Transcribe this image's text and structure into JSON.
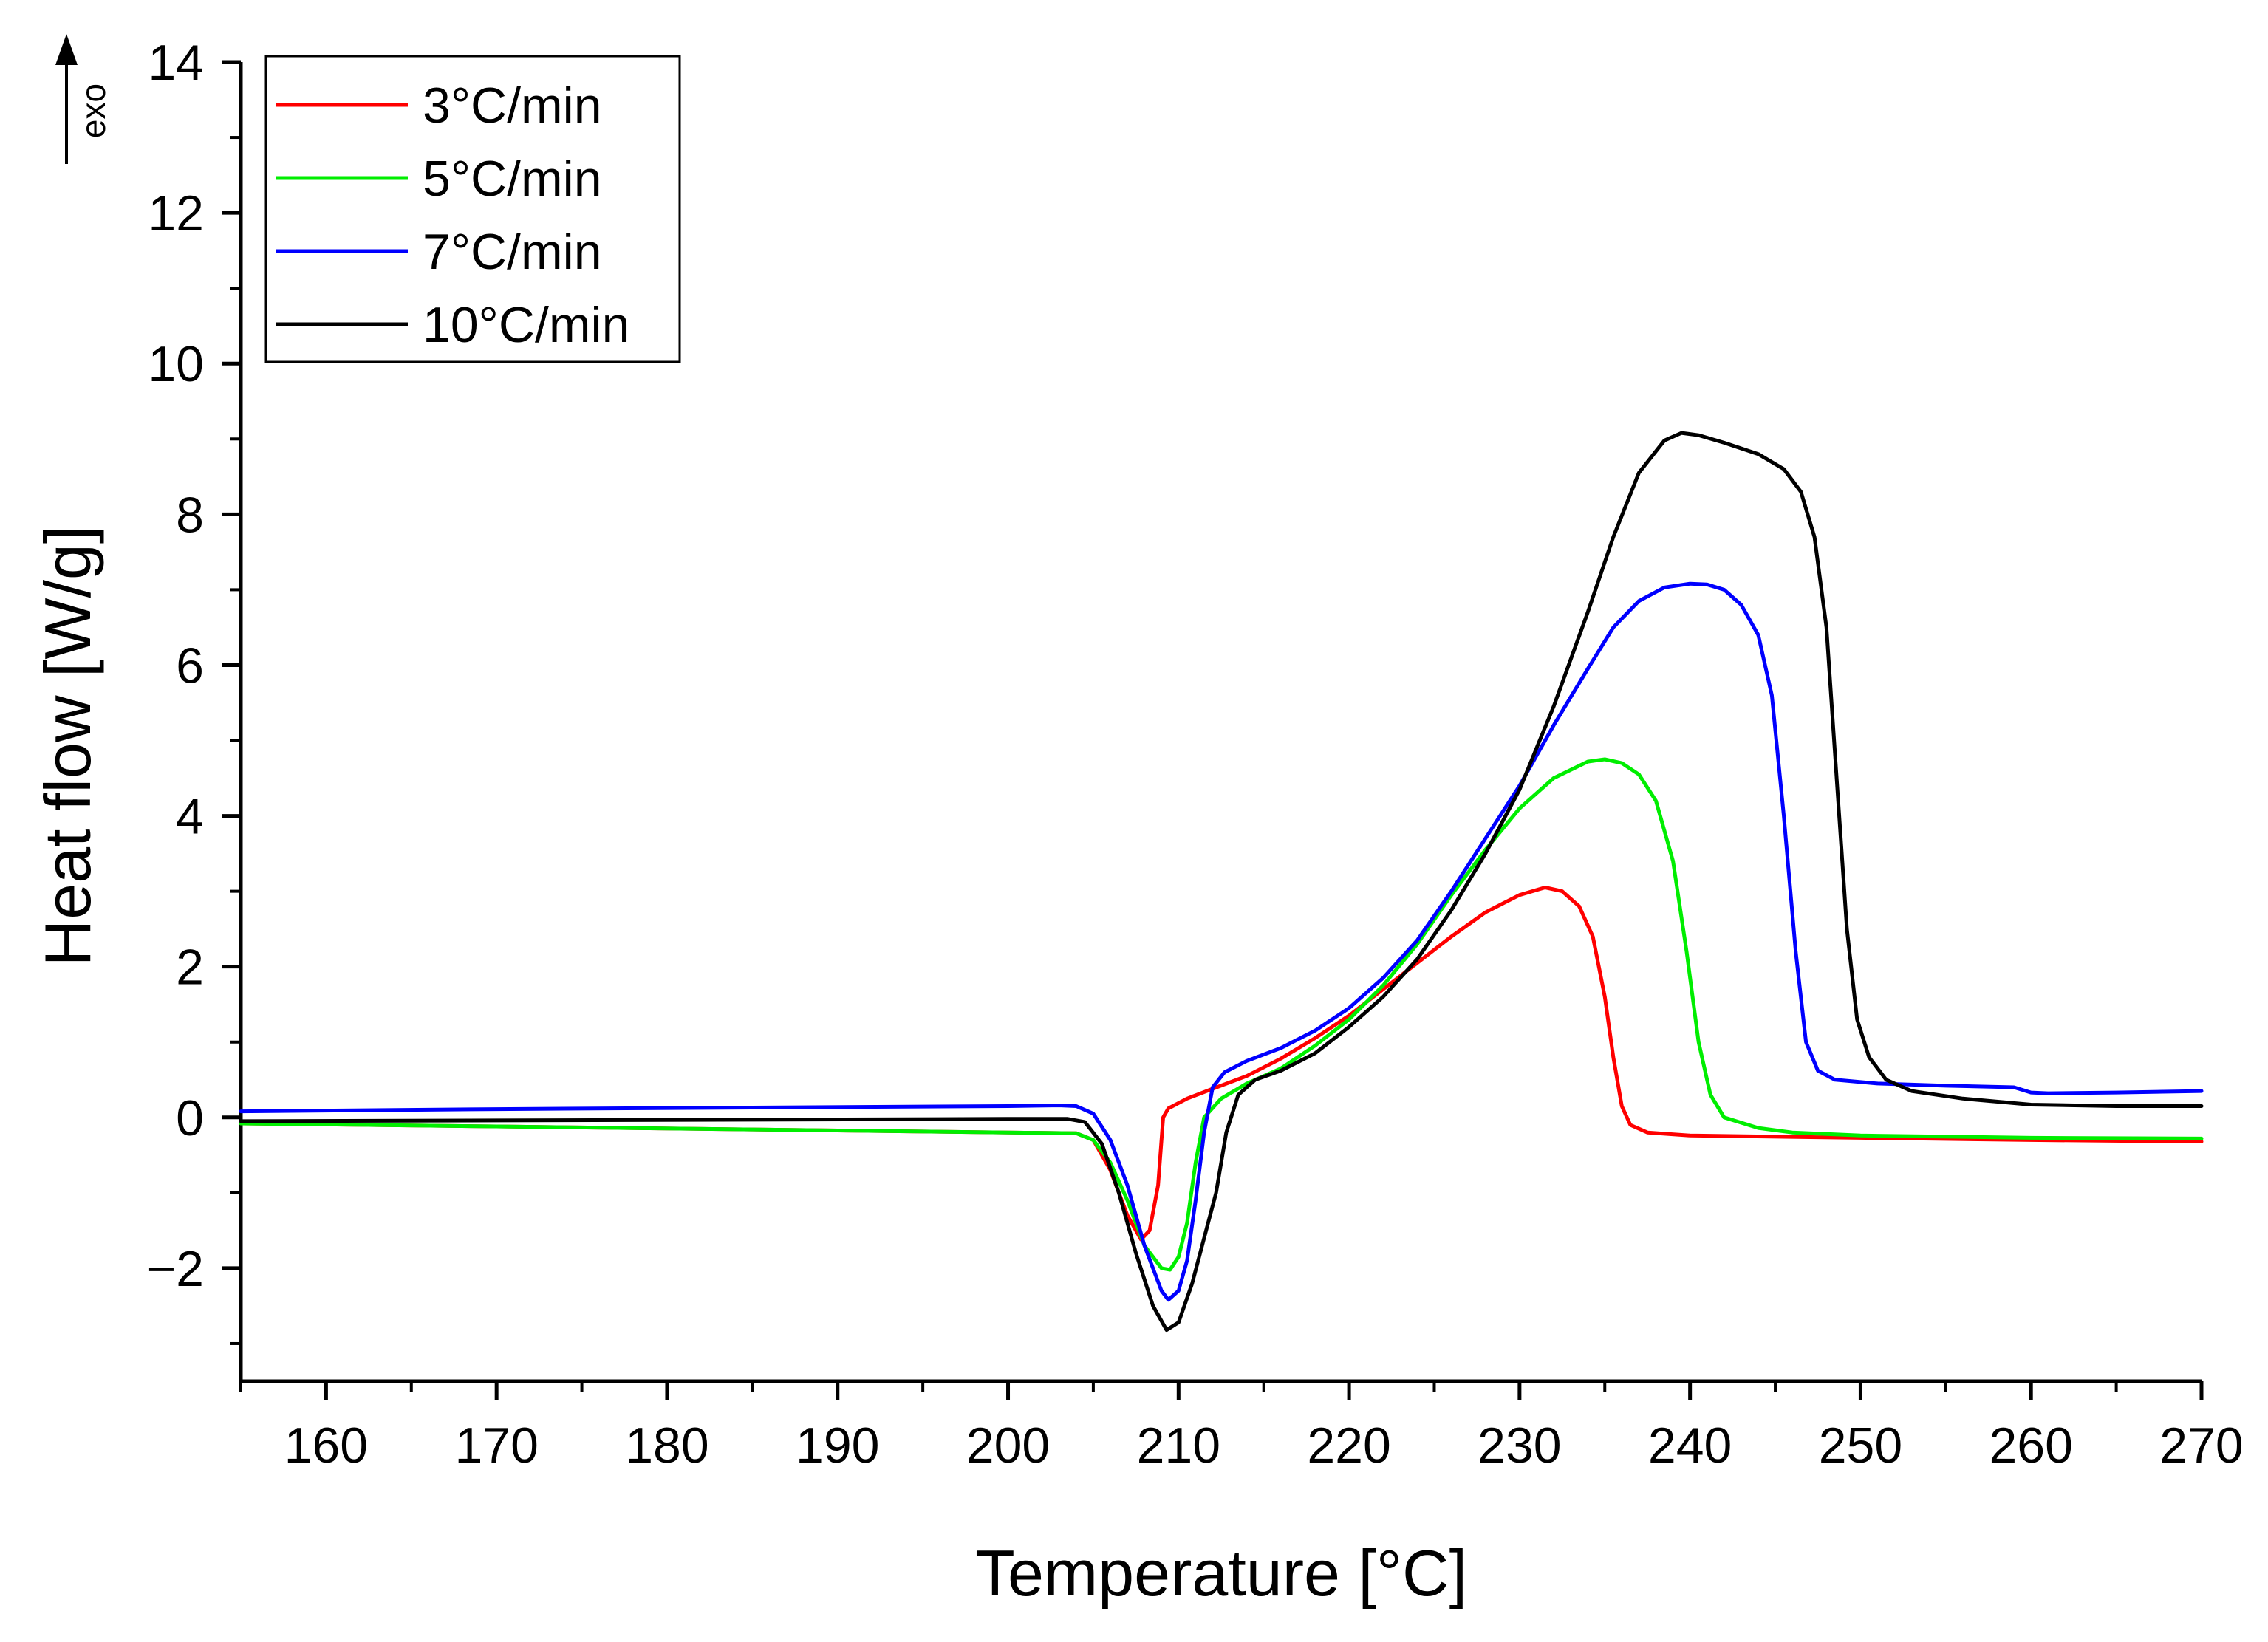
{
  "chart_data": {
    "type": "line",
    "title": "",
    "xlabel": "Temperature [°C]",
    "ylabel": "Heat flow [W/g]",
    "exo_label": "exo",
    "xlim": [
      155,
      270
    ],
    "ylim": [
      -3.5,
      14
    ],
    "xticks": [
      160,
      170,
      180,
      190,
      200,
      210,
      220,
      230,
      240,
      250,
      260,
      270
    ],
    "xtick_labels": [
      "160",
      "170",
      "180",
      "190",
      "200",
      "210",
      "220",
      "230",
      "240",
      "250",
      "260",
      "270"
    ],
    "yticks": [
      -2,
      0,
      2,
      4,
      6,
      8,
      10,
      12,
      14
    ],
    "ytick_labels": [
      "−2",
      "0",
      "2",
      "4",
      "6",
      "8",
      "10",
      "12",
      "14"
    ],
    "legend_position": "top-left",
    "grid": false,
    "series": [
      {
        "name": "3°C/min",
        "color": "#ff0000",
        "points": [
          [
            155,
            -0.08
          ],
          [
            170,
            -0.12
          ],
          [
            185,
            -0.16
          ],
          [
            200,
            -0.2
          ],
          [
            204,
            -0.21
          ],
          [
            205,
            -0.3
          ],
          [
            206,
            -0.7
          ],
          [
            207,
            -1.3
          ],
          [
            207.8,
            -1.62
          ],
          [
            208.3,
            -1.5
          ],
          [
            208.8,
            -0.9
          ],
          [
            209.1,
            0.0
          ],
          [
            209.4,
            0.12
          ],
          [
            210.5,
            0.25
          ],
          [
            212,
            0.38
          ],
          [
            214,
            0.55
          ],
          [
            216,
            0.78
          ],
          [
            218,
            1.05
          ],
          [
            220,
            1.35
          ],
          [
            222,
            1.7
          ],
          [
            224,
            2.05
          ],
          [
            226,
            2.4
          ],
          [
            228,
            2.72
          ],
          [
            230,
            2.95
          ],
          [
            231.5,
            3.05
          ],
          [
            232.5,
            3.0
          ],
          [
            233.5,
            2.8
          ],
          [
            234.3,
            2.4
          ],
          [
            235,
            1.6
          ],
          [
            235.5,
            0.8
          ],
          [
            236,
            0.15
          ],
          [
            236.5,
            -0.1
          ],
          [
            237.5,
            -0.2
          ],
          [
            240,
            -0.24
          ],
          [
            250,
            -0.27
          ],
          [
            260,
            -0.3
          ],
          [
            270,
            -0.32
          ]
        ]
      },
      {
        "name": "5°C/min",
        "color": "#00ee00",
        "points": [
          [
            155,
            -0.08
          ],
          [
            170,
            -0.12
          ],
          [
            185,
            -0.16
          ],
          [
            200,
            -0.2
          ],
          [
            204,
            -0.21
          ],
          [
            205,
            -0.3
          ],
          [
            206,
            -0.6
          ],
          [
            207,
            -1.1
          ],
          [
            208,
            -1.7
          ],
          [
            209,
            -2.0
          ],
          [
            209.5,
            -2.02
          ],
          [
            210,
            -1.85
          ],
          [
            210.5,
            -1.4
          ],
          [
            211,
            -0.6
          ],
          [
            211.5,
            0.0
          ],
          [
            212.5,
            0.25
          ],
          [
            214,
            0.45
          ],
          [
            216,
            0.65
          ],
          [
            218,
            0.95
          ],
          [
            220,
            1.3
          ],
          [
            222,
            1.75
          ],
          [
            224,
            2.3
          ],
          [
            226,
            2.95
          ],
          [
            228,
            3.55
          ],
          [
            230,
            4.1
          ],
          [
            232,
            4.5
          ],
          [
            234,
            4.72
          ],
          [
            235,
            4.75
          ],
          [
            236,
            4.7
          ],
          [
            237,
            4.55
          ],
          [
            238,
            4.2
          ],
          [
            239,
            3.4
          ],
          [
            239.8,
            2.2
          ],
          [
            240.5,
            1.0
          ],
          [
            241.2,
            0.3
          ],
          [
            242,
            0.0
          ],
          [
            244,
            -0.14
          ],
          [
            246,
            -0.2
          ],
          [
            250,
            -0.24
          ],
          [
            260,
            -0.27
          ],
          [
            270,
            -0.28
          ]
        ]
      },
      {
        "name": "7°C/min",
        "color": "#0000ff",
        "points": [
          [
            155,
            0.08
          ],
          [
            170,
            0.11
          ],
          [
            185,
            0.13
          ],
          [
            200,
            0.15
          ],
          [
            203,
            0.16
          ],
          [
            204,
            0.15
          ],
          [
            205,
            0.05
          ],
          [
            206,
            -0.3
          ],
          [
            207,
            -0.9
          ],
          [
            208,
            -1.7
          ],
          [
            209,
            -2.3
          ],
          [
            209.4,
            -2.42
          ],
          [
            210,
            -2.3
          ],
          [
            210.5,
            -1.9
          ],
          [
            211,
            -1.1
          ],
          [
            211.5,
            -0.2
          ],
          [
            212,
            0.4
          ],
          [
            212.7,
            0.6
          ],
          [
            214,
            0.75
          ],
          [
            216,
            0.92
          ],
          [
            218,
            1.15
          ],
          [
            220,
            1.45
          ],
          [
            222,
            1.85
          ],
          [
            224,
            2.35
          ],
          [
            226,
            3.0
          ],
          [
            228,
            3.7
          ],
          [
            230,
            4.4
          ],
          [
            232,
            5.2
          ],
          [
            234,
            5.95
          ],
          [
            235.5,
            6.5
          ],
          [
            237,
            6.85
          ],
          [
            238.5,
            7.03
          ],
          [
            240,
            7.08
          ],
          [
            241,
            7.07
          ],
          [
            242,
            7.0
          ],
          [
            243,
            6.8
          ],
          [
            244,
            6.4
          ],
          [
            244.8,
            5.6
          ],
          [
            245.5,
            4.0
          ],
          [
            246.2,
            2.2
          ],
          [
            246.8,
            1.0
          ],
          [
            247.5,
            0.62
          ],
          [
            248.5,
            0.5
          ],
          [
            251,
            0.45
          ],
          [
            255,
            0.42
          ],
          [
            259,
            0.4
          ],
          [
            260,
            0.33
          ],
          [
            261,
            0.32
          ],
          [
            265,
            0.33
          ],
          [
            270,
            0.35
          ]
        ]
      },
      {
        "name": "10°C/min",
        "color": "#000000",
        "points": [
          [
            155,
            -0.05
          ],
          [
            170,
            -0.04
          ],
          [
            185,
            -0.03
          ],
          [
            200,
            -0.02
          ],
          [
            203.5,
            -0.02
          ],
          [
            204.5,
            -0.06
          ],
          [
            205.5,
            -0.35
          ],
          [
            206.5,
            -1.0
          ],
          [
            207.5,
            -1.8
          ],
          [
            208.5,
            -2.5
          ],
          [
            209.3,
            -2.82
          ],
          [
            210,
            -2.72
          ],
          [
            210.8,
            -2.2
          ],
          [
            211.5,
            -1.6
          ],
          [
            212.2,
            -1.0
          ],
          [
            212.8,
            -0.2
          ],
          [
            213.5,
            0.3
          ],
          [
            214.5,
            0.5
          ],
          [
            216,
            0.62
          ],
          [
            218,
            0.85
          ],
          [
            220,
            1.2
          ],
          [
            222,
            1.6
          ],
          [
            224,
            2.1
          ],
          [
            226,
            2.75
          ],
          [
            228,
            3.5
          ],
          [
            230,
            4.35
          ],
          [
            232,
            5.45
          ],
          [
            234,
            6.7
          ],
          [
            235.5,
            7.7
          ],
          [
            237,
            8.55
          ],
          [
            238.5,
            8.98
          ],
          [
            239.5,
            9.08
          ],
          [
            240.5,
            9.05
          ],
          [
            242,
            8.95
          ],
          [
            244,
            8.8
          ],
          [
            245.5,
            8.6
          ],
          [
            246.5,
            8.3
          ],
          [
            247.3,
            7.7
          ],
          [
            248,
            6.5
          ],
          [
            248.6,
            4.5
          ],
          [
            249.2,
            2.5
          ],
          [
            249.8,
            1.3
          ],
          [
            250.5,
            0.8
          ],
          [
            251.5,
            0.5
          ],
          [
            253,
            0.35
          ],
          [
            256,
            0.25
          ],
          [
            260,
            0.17
          ],
          [
            265,
            0.15
          ],
          [
            270,
            0.15
          ]
        ]
      }
    ]
  }
}
